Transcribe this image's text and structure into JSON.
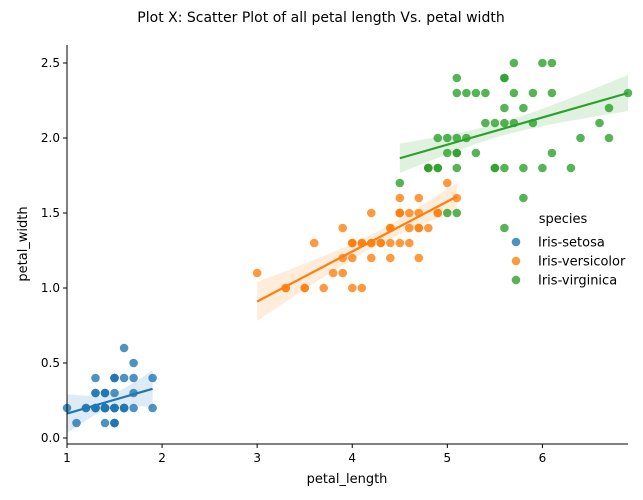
{
  "chart_data": {
    "type": "scatter",
    "title": "Plot X: Scatter Plot of all petal length Vs. petal width",
    "xlabel": "petal_length",
    "ylabel": "petal_width",
    "xlim": [
      1.0,
      6.9
    ],
    "ylim": [
      -0.04,
      2.62
    ],
    "xticks": [
      1,
      2,
      3,
      4,
      5,
      6
    ],
    "yticks": [
      "0.0",
      "0.5",
      "1.0",
      "1.5",
      "2.0",
      "2.5"
    ],
    "grid": false,
    "legend_title": "species",
    "legend_position": "right",
    "series": [
      {
        "name": "Iris-setosa",
        "color": "#1f77b4",
        "x": [
          1.4,
          1.4,
          1.3,
          1.5,
          1.4,
          1.7,
          1.4,
          1.5,
          1.4,
          1.5,
          1.5,
          1.6,
          1.4,
          1.1,
          1.2,
          1.5,
          1.3,
          1.4,
          1.7,
          1.5,
          1.7,
          1.5,
          1.0,
          1.7,
          1.9,
          1.6,
          1.6,
          1.5,
          1.4,
          1.6,
          1.6,
          1.5,
          1.5,
          1.4,
          1.5,
          1.2,
          1.3,
          1.5,
          1.3,
          1.5,
          1.3,
          1.3,
          1.3,
          1.6,
          1.9,
          1.4,
          1.6,
          1.4,
          1.5,
          1.4
        ],
        "y": [
          0.2,
          0.2,
          0.2,
          0.2,
          0.2,
          0.4,
          0.3,
          0.2,
          0.2,
          0.1,
          0.2,
          0.2,
          0.1,
          0.1,
          0.2,
          0.4,
          0.4,
          0.3,
          0.3,
          0.3,
          0.2,
          0.4,
          0.2,
          0.5,
          0.2,
          0.2,
          0.4,
          0.2,
          0.2,
          0.2,
          0.2,
          0.4,
          0.1,
          0.2,
          0.1,
          0.2,
          0.2,
          0.1,
          0.2,
          0.2,
          0.3,
          0.3,
          0.2,
          0.6,
          0.4,
          0.3,
          0.2,
          0.2,
          0.2,
          0.2
        ],
        "fit": {
          "x": [
            1.0,
            1.9
          ],
          "y": [
            0.163,
            0.328
          ]
        }
      },
      {
        "name": "Iris-versicolor",
        "color": "#ff7f0e",
        "x": [
          4.7,
          4.5,
          4.9,
          4.0,
          4.6,
          4.5,
          4.7,
          3.3,
          4.6,
          3.9,
          3.5,
          4.2,
          4.0,
          4.7,
          3.6,
          4.4,
          4.5,
          4.1,
          4.5,
          3.9,
          4.8,
          4.0,
          4.9,
          4.7,
          4.3,
          4.4,
          4.8,
          5.0,
          4.5,
          3.5,
          3.8,
          3.7,
          3.9,
          5.1,
          4.5,
          4.5,
          4.7,
          4.4,
          4.1,
          4.0,
          4.4,
          4.6,
          4.0,
          3.3,
          4.2,
          4.2,
          4.2,
          4.3,
          3.0,
          4.1
        ],
        "y": [
          1.4,
          1.5,
          1.5,
          1.3,
          1.5,
          1.3,
          1.6,
          1.0,
          1.3,
          1.4,
          1.0,
          1.5,
          1.0,
          1.4,
          1.3,
          1.4,
          1.5,
          1.0,
          1.5,
          1.1,
          1.8,
          1.3,
          1.5,
          1.2,
          1.3,
          1.4,
          1.4,
          1.7,
          1.5,
          1.0,
          1.1,
          1.0,
          1.2,
          1.6,
          1.5,
          1.6,
          1.5,
          1.3,
          1.3,
          1.3,
          1.2,
          1.4,
          1.2,
          1.0,
          1.3,
          1.2,
          1.3,
          1.3,
          1.1,
          1.3
        ],
        "fit": {
          "x": [
            3.0,
            5.1
          ],
          "y": [
            0.91,
            1.61
          ]
        }
      },
      {
        "name": "Iris-virginica",
        "color": "#2ca02c",
        "x": [
          6.0,
          5.1,
          5.9,
          5.6,
          5.8,
          6.6,
          4.5,
          6.3,
          5.8,
          6.1,
          5.1,
          5.3,
          5.5,
          5.0,
          5.1,
          5.3,
          5.5,
          6.7,
          6.9,
          5.0,
          5.7,
          4.9,
          6.7,
          4.9,
          5.7,
          6.0,
          4.8,
          4.9,
          5.6,
          5.8,
          6.1,
          6.4,
          5.6,
          5.1,
          5.6,
          6.1,
          5.6,
          5.5,
          4.8,
          5.4,
          5.6,
          5.1,
          5.1,
          5.9,
          5.7,
          5.2,
          5.0,
          5.2,
          5.4,
          5.1
        ],
        "y": [
          2.5,
          1.9,
          2.1,
          1.8,
          2.2,
          2.1,
          1.7,
          1.8,
          1.8,
          2.5,
          2.0,
          1.9,
          2.1,
          2.0,
          2.4,
          2.3,
          1.8,
          2.2,
          2.3,
          1.5,
          2.3,
          2.0,
          2.0,
          1.8,
          2.1,
          1.8,
          1.8,
          1.8,
          2.1,
          1.6,
          1.9,
          2.0,
          2.2,
          1.5,
          1.4,
          2.3,
          2.4,
          1.8,
          1.8,
          2.1,
          2.4,
          2.3,
          1.9,
          2.3,
          2.5,
          2.3,
          1.9,
          2.0,
          2.3,
          1.8
        ],
        "fit": {
          "x": [
            4.5,
            6.9
          ],
          "y": [
            1.865,
            2.3
          ]
        }
      }
    ]
  }
}
